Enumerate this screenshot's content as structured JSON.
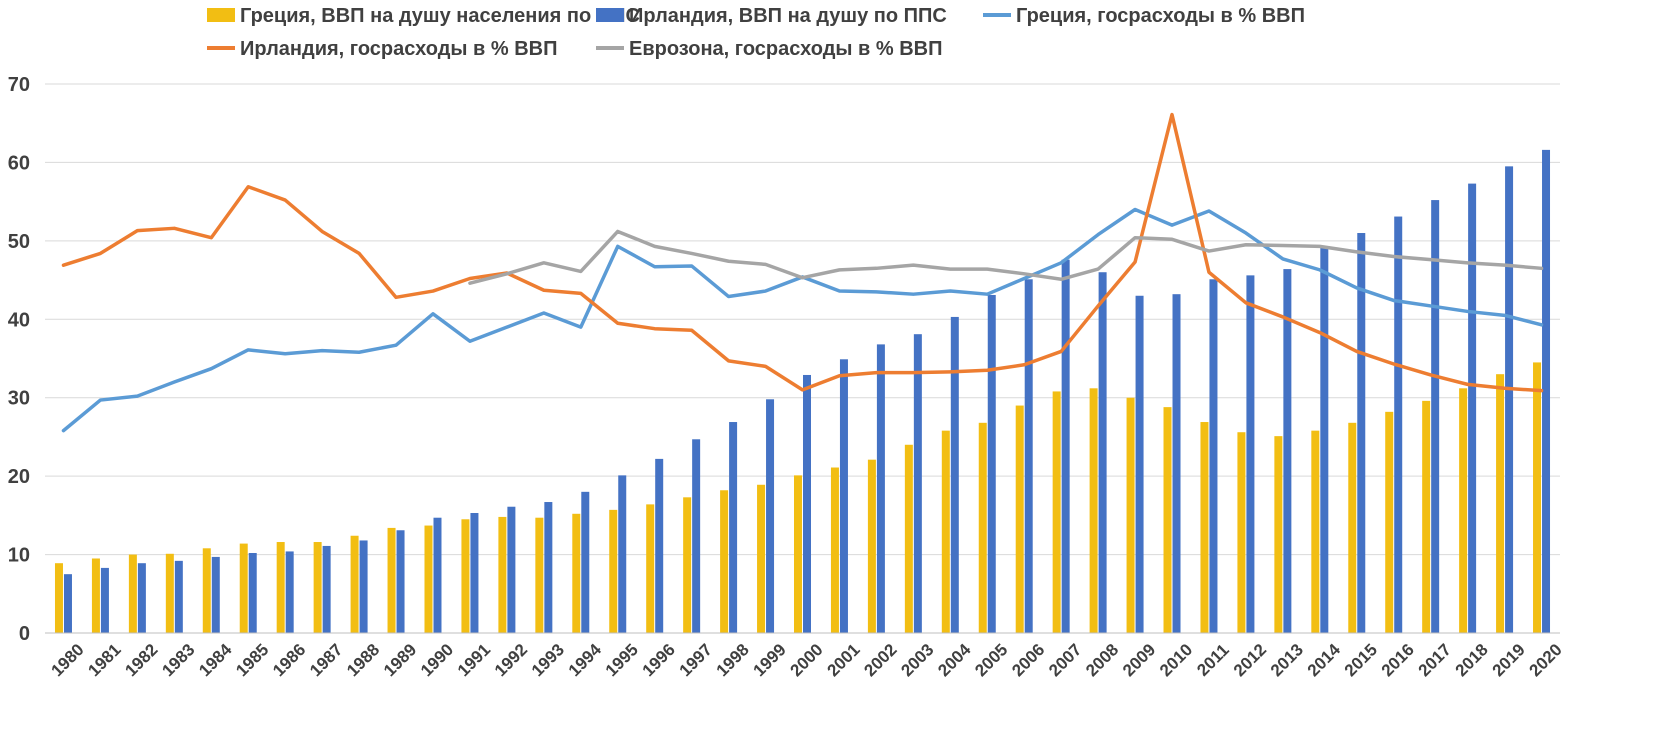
{
  "chart_data": {
    "type": "bar",
    "title": "",
    "xlabel": "",
    "ylabel": "",
    "ylim": [
      0,
      70
    ],
    "yticks": [
      0,
      10,
      20,
      30,
      40,
      50,
      60,
      70
    ],
    "grid": true,
    "legend_position": "top",
    "categories": [
      "1980",
      "1981",
      "1982",
      "1983",
      "1984",
      "1985",
      "1986",
      "1987",
      "1988",
      "1989",
      "1990",
      "1991",
      "1992",
      "1993",
      "1994",
      "1995",
      "1996",
      "1997",
      "1998",
      "1999",
      "2000",
      "2001",
      "2002",
      "2003",
      "2004",
      "2005",
      "2006",
      "2007",
      "2008",
      "2009",
      "2010",
      "2011",
      "2012",
      "2013",
      "2014",
      "2015",
      "2016",
      "2017",
      "2018",
      "2019",
      "2020"
    ],
    "bar_series": [
      {
        "name": "Греция, ВВП на душу населения по ППС",
        "color": "#F2BE13",
        "values": [
          8.9,
          9.5,
          10.0,
          10.1,
          10.8,
          11.4,
          11.6,
          11.6,
          12.4,
          13.4,
          13.7,
          14.5,
          14.8,
          14.7,
          15.2,
          15.7,
          16.4,
          17.3,
          18.2,
          18.9,
          20.1,
          21.1,
          22.1,
          24.0,
          25.8,
          26.8,
          29.0,
          30.8,
          31.2,
          30.0,
          28.8,
          26.9,
          25.6,
          25.1,
          25.8,
          26.8,
          28.2,
          29.6,
          31.2,
          33.0,
          34.5
        ]
      },
      {
        "name": "Ирландия, ВВП на душу по ППС",
        "color": "#4472C4",
        "values": [
          7.5,
          8.3,
          8.9,
          9.2,
          9.7,
          10.2,
          10.4,
          11.1,
          11.8,
          13.1,
          14.7,
          15.3,
          16.1,
          16.7,
          18.0,
          20.1,
          22.2,
          24.7,
          26.9,
          29.8,
          32.9,
          34.9,
          36.8,
          38.1,
          40.3,
          43.1,
          45.1,
          47.6,
          46.0,
          43.0,
          43.2,
          45.1,
          45.6,
          46.4,
          49.1,
          51.0,
          53.1,
          55.2,
          57.3,
          59.5,
          61.6
        ]
      }
    ],
    "line_series": [
      {
        "name": "Греция, госрасходы в % ВВП",
        "color": "#5B9BD5",
        "values": [
          25.8,
          29.7,
          30.2,
          32.0,
          33.7,
          36.1,
          35.6,
          36.0,
          35.8,
          36.7,
          40.7,
          37.2,
          39.0,
          40.8,
          39.0,
          49.3,
          46.7,
          46.8,
          42.9,
          43.6,
          45.4,
          43.6,
          43.5,
          43.2,
          43.6,
          43.2,
          45.2,
          47.2,
          50.8,
          54.0,
          52.0,
          53.8,
          51.0,
          47.7,
          46.3,
          44.0,
          42.4,
          41.7,
          41.0,
          40.5,
          39.3
        ]
      },
      {
        "name": "Ирландия, госрасходы в % ВВП",
        "color": "#ED7D31",
        "values": [
          46.9,
          48.4,
          51.3,
          51.6,
          50.4,
          56.9,
          55.2,
          51.2,
          48.4,
          42.8,
          43.6,
          45.2,
          45.9,
          43.7,
          43.3,
          39.5,
          38.8,
          38.6,
          34.7,
          34.0,
          31.0,
          32.8,
          33.2,
          33.2,
          33.3,
          33.5,
          34.2,
          35.9,
          41.7,
          47.3,
          66.1,
          46.0,
          42.1,
          40.3,
          38.3,
          35.9,
          34.3,
          32.9,
          31.7,
          31.2,
          30.9
        ]
      },
      {
        "name": "Еврозона, госрасходы в % ВВП",
        "color": "#A5A5A5",
        "values": [
          null,
          null,
          null,
          null,
          null,
          null,
          null,
          null,
          null,
          null,
          null,
          44.6,
          45.8,
          47.2,
          46.1,
          51.2,
          49.3,
          48.4,
          47.4,
          47.0,
          45.3,
          46.3,
          46.5,
          46.9,
          46.4,
          46.4,
          45.8,
          45.1,
          46.4,
          50.4,
          50.2,
          48.7,
          49.5,
          49.4,
          49.3,
          48.6,
          48.0,
          47.6,
          47.2,
          46.9,
          46.5
        ]
      }
    ],
    "legend": [
      {
        "name": "Греция, ВВП на душу населения по ППС",
        "kind": "bar",
        "color": "#F2BE13"
      },
      {
        "name": "Ирландия, ВВП на душу по ППС",
        "kind": "bar",
        "color": "#4472C4"
      },
      {
        "name": "Греция, госрасходы в % ВВП",
        "kind": "line",
        "color": "#5B9BD5"
      },
      {
        "name": "Ирландия, госрасходы в % ВВП",
        "kind": "line",
        "color": "#ED7D31"
      },
      {
        "name": "Еврозона, госрасходы в % ВВП",
        "kind": "line",
        "color": "#A5A5A5"
      }
    ]
  }
}
